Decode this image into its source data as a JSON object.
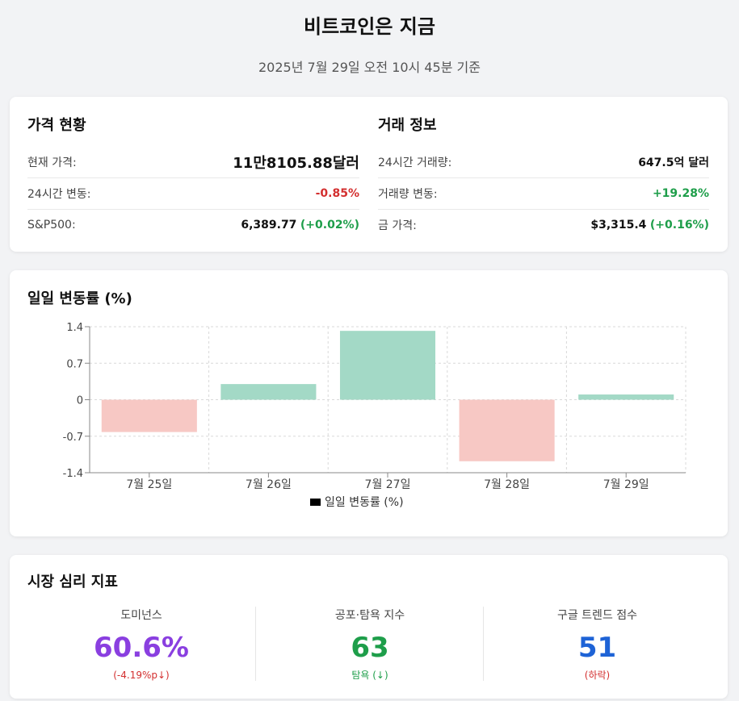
{
  "header": {
    "title": "비트코인은 지금",
    "subtitle": "2025년 7월 29일 오전 10시 45분 기준"
  },
  "price": {
    "title": "가격 현황",
    "rows": [
      {
        "label": "현재 가격:",
        "value": "11만8105.88달러"
      },
      {
        "label": "24시간 변동:",
        "value": "-0.85%"
      },
      {
        "label": "S&P500:",
        "value": "6,389.77",
        "change": "(+0.02%)"
      }
    ]
  },
  "trade": {
    "title": "거래 정보",
    "rows": [
      {
        "label": "24시간 거래량:",
        "value": "647.5억 달러"
      },
      {
        "label": "거래량 변동:",
        "value": "+19.28%"
      },
      {
        "label": "금 가격:",
        "value": "$3,315.4",
        "change": "(+0.16%)"
      }
    ]
  },
  "chart_title": "일일 변동률 (%)",
  "chart_data": {
    "type": "bar",
    "categories": [
      "7월 25일",
      "7월 26일",
      "7월 27일",
      "7월 28일",
      "7월 29일"
    ],
    "series": [
      {
        "name": "일일 변동률 (%)",
        "values": [
          -0.62,
          0.3,
          1.32,
          -1.18,
          0.1
        ]
      }
    ],
    "yticks": [
      "1.4",
      "0.7",
      "0",
      "-0.7",
      "-1.4"
    ],
    "ylim": [
      -1.4,
      1.4
    ],
    "grid": true,
    "legend": "bottom",
    "colors": {
      "positive": "#a3d9c6",
      "negative": "#f7c8c4",
      "legend_swatch": "#000000"
    }
  },
  "sentiment": {
    "title": "시장 심리 지표",
    "metrics": [
      {
        "label": "도미넌스",
        "value": "60.6%",
        "sub": "(-4.19%p↓)",
        "color": "#8a3fe0",
        "sub_color": "#d32f2f"
      },
      {
        "label": "공포·탐욕 지수",
        "value": "63",
        "sub": "탐욕 (↓)",
        "color": "#1e9e4a",
        "sub_color": "#1e9e4a"
      },
      {
        "label": "구글 트렌드 점수",
        "value": "51",
        "sub": "(하락)",
        "color": "#1e63d6",
        "sub_color": "#d32f2f"
      }
    ]
  }
}
